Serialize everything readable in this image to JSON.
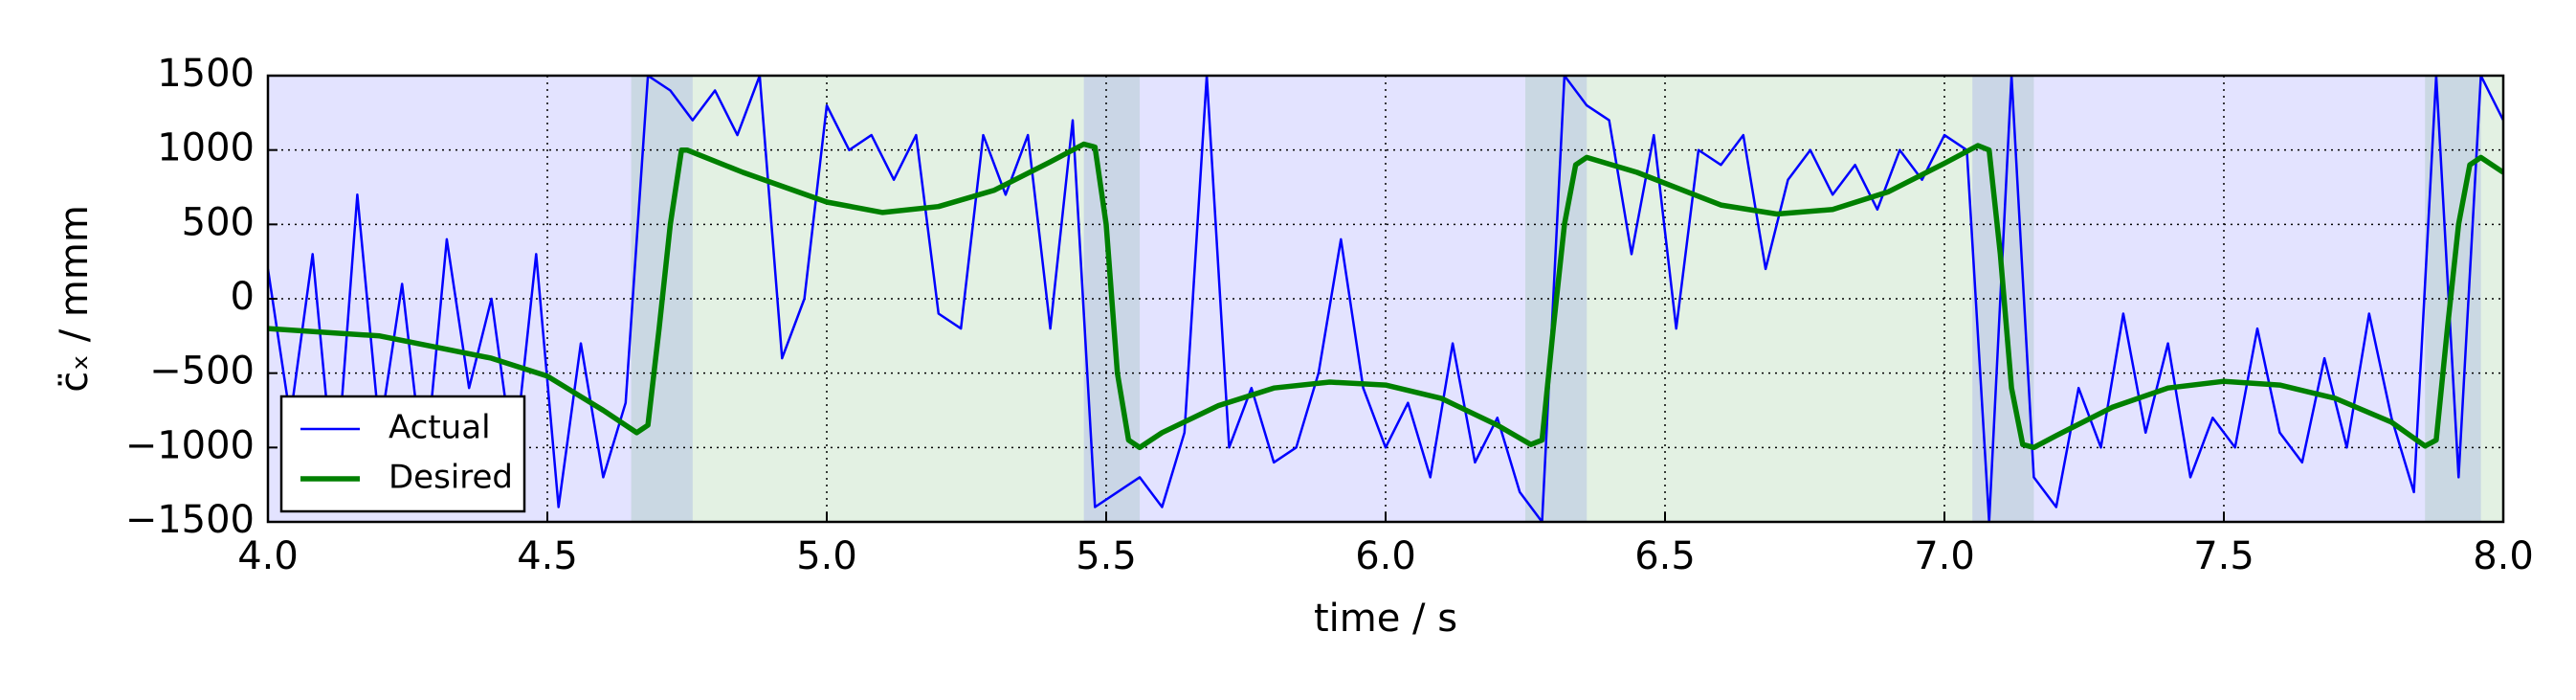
{
  "chart_data": {
    "type": "line",
    "xlabel": "time / s",
    "ylabel": "c̈ₓ / mmm",
    "xlim": [
      4.0,
      8.0
    ],
    "ylim": [
      -1500,
      1500
    ],
    "xticks": [
      {
        "value": 4.0,
        "label": "4.0"
      },
      4.5,
      {
        "value": 5.0,
        "label": "5.0"
      },
      5.5,
      {
        "value": 6.0,
        "label": "6.0"
      },
      6.5,
      {
        "value": 7.0,
        "label": "7.0"
      },
      7.5,
      {
        "value": 8.0,
        "label": "8.0"
      }
    ],
    "yticks": [
      {
        "value": -1500,
        "label": "−1500"
      },
      {
        "value": -1000,
        "label": "−1000"
      },
      {
        "value": -500,
        "label": "−500"
      },
      0,
      500,
      1000,
      1500
    ],
    "grid": true,
    "legend": "lower left",
    "regions": [
      {
        "start": 4.0,
        "end": 4.76,
        "color": "#0000ff"
      },
      {
        "start": 4.65,
        "end": 5.56,
        "color": "#008000"
      },
      {
        "start": 5.46,
        "end": 6.36,
        "color": "#0000ff"
      },
      {
        "start": 6.25,
        "end": 7.16,
        "color": "#008000"
      },
      {
        "start": 7.05,
        "end": 7.96,
        "color": "#0000ff"
      },
      {
        "start": 7.86,
        "end": 8.0,
        "color": "#008000"
      }
    ],
    "series": [
      {
        "name": "Actual",
        "color": "#0000ff",
        "width": 2.5,
        "x": [
          4.0,
          4.04,
          4.08,
          4.12,
          4.16,
          4.2,
          4.24,
          4.28,
          4.32,
          4.36,
          4.4,
          4.44,
          4.48,
          4.52,
          4.56,
          4.6,
          4.64,
          4.68,
          4.72,
          4.76,
          4.8,
          4.84,
          4.88,
          4.92,
          4.96,
          5.0,
          5.04,
          5.08,
          5.12,
          5.16,
          5.2,
          5.24,
          5.28,
          5.32,
          5.36,
          5.4,
          5.44,
          5.48,
          5.52,
          5.56,
          5.6,
          5.64,
          5.68,
          5.72,
          5.76,
          5.8,
          5.84,
          5.88,
          5.92,
          5.96,
          6.0,
          6.04,
          6.08,
          6.12,
          6.16,
          6.2,
          6.24,
          6.28,
          6.32,
          6.36,
          6.4,
          6.44,
          6.48,
          6.52,
          6.56,
          6.6,
          6.64,
          6.68,
          6.72,
          6.76,
          6.8,
          6.84,
          6.88,
          6.92,
          6.96,
          7.0,
          7.04,
          7.08,
          7.12,
          7.16,
          7.2,
          7.24,
          7.28,
          7.32,
          7.36,
          7.4,
          7.44,
          7.48,
          7.52,
          7.56,
          7.6,
          7.64,
          7.68,
          7.72,
          7.76,
          7.8,
          7.84,
          7.88,
          7.92,
          7.96,
          8.0
        ],
        "values": [
          200,
          -800,
          300,
          -1300,
          700,
          -900,
          100,
          -1200,
          400,
          -600,
          0,
          -1100,
          300,
          -1400,
          -300,
          -1200,
          -700,
          1500,
          1400,
          1200,
          1400,
          1100,
          1500,
          -400,
          0,
          1300,
          1000,
          1100,
          800,
          1100,
          -100,
          -200,
          1100,
          700,
          1100,
          -200,
          1200,
          -1400,
          -1300,
          -1200,
          -1400,
          -900,
          1500,
          -1000,
          -600,
          -1100,
          -1000,
          -500,
          400,
          -600,
          -1000,
          -700,
          -1200,
          -300,
          -1100,
          -800,
          -1300,
          -1500,
          1500,
          1300,
          1200,
          300,
          1100,
          -200,
          1000,
          900,
          1100,
          200,
          800,
          1000,
          700,
          900,
          600,
          1000,
          800,
          1100,
          1000,
          -1500,
          1500,
          -1200,
          -1400,
          -600,
          -1000,
          -100,
          -900,
          -300,
          -1200,
          -800,
          -1000,
          -200,
          -900,
          -1100,
          -400,
          -1000,
          -100,
          -800,
          -1300,
          1500,
          -1200,
          1500,
          1200
        ]
      },
      {
        "name": "Desired",
        "color": "#008000",
        "width": 5.5,
        "x": [
          4.0,
          4.2,
          4.4,
          4.5,
          4.6,
          4.66,
          4.68,
          4.7,
          4.72,
          4.74,
          4.75,
          4.85,
          5.0,
          5.1,
          5.2,
          5.3,
          5.4,
          5.46,
          5.48,
          5.5,
          5.52,
          5.54,
          5.56,
          5.6,
          5.7,
          5.8,
          5.9,
          6.0,
          6.1,
          6.2,
          6.26,
          6.28,
          6.3,
          6.32,
          6.34,
          6.36,
          6.45,
          6.6,
          6.7,
          6.8,
          6.9,
          7.0,
          7.06,
          7.08,
          7.1,
          7.12,
          7.14,
          7.16,
          7.2,
          7.3,
          7.4,
          7.5,
          7.6,
          7.7,
          7.8,
          7.86,
          7.88,
          7.9,
          7.92,
          7.94,
          7.96,
          8.0
        ],
        "values": [
          -200,
          -250,
          -400,
          -520,
          -750,
          -900,
          -850,
          -200,
          500,
          1000,
          1000,
          850,
          650,
          580,
          620,
          730,
          920,
          1040,
          1020,
          500,
          -500,
          -950,
          -1000,
          -900,
          -720,
          -600,
          -560,
          -580,
          -670,
          -850,
          -980,
          -950,
          -200,
          500,
          900,
          950,
          850,
          630,
          570,
          600,
          720,
          910,
          1030,
          1000,
          300,
          -600,
          -980,
          -1000,
          -920,
          -730,
          -600,
          -555,
          -580,
          -670,
          -830,
          -990,
          -950,
          -200,
          500,
          900,
          950,
          850
        ]
      }
    ]
  }
}
